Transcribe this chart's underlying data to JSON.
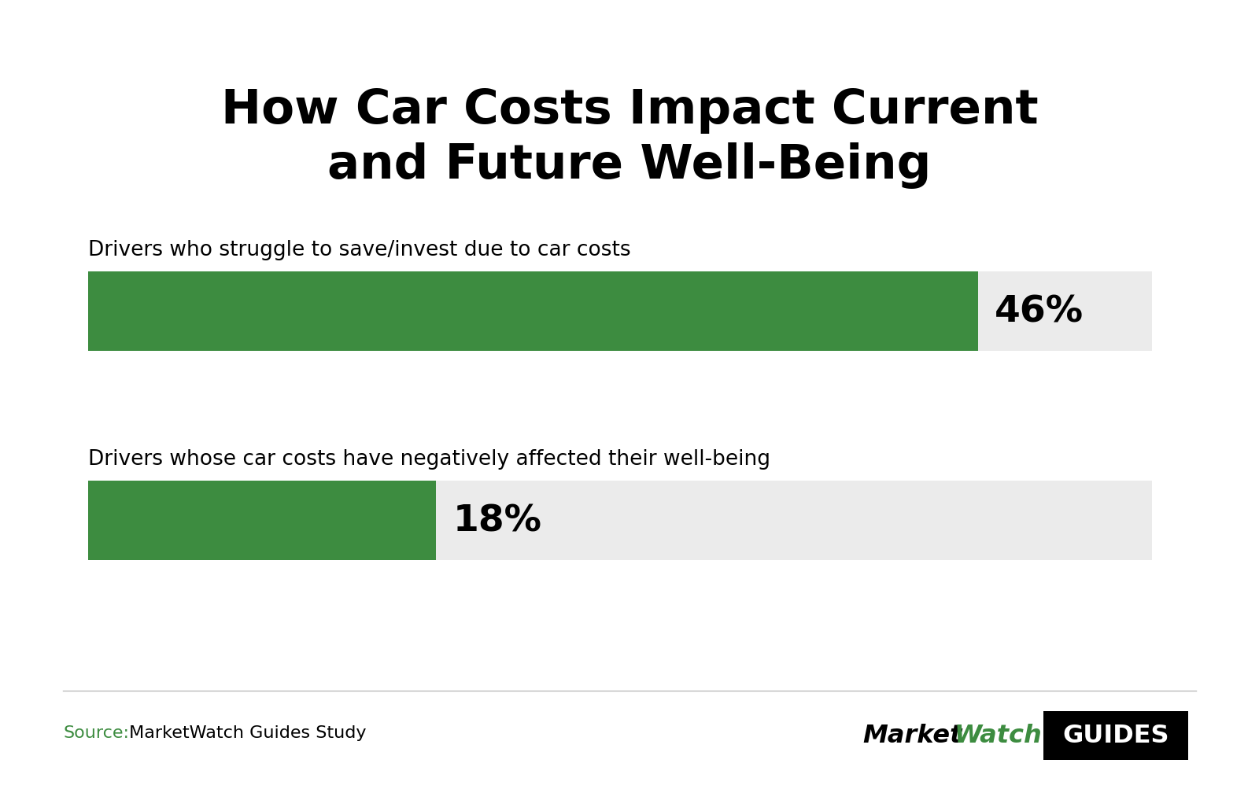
{
  "title": "How Car Costs Impact Current\nand Future Well-Being",
  "title_fontsize": 44,
  "title_fontweight": "bold",
  "background_color": "#ffffff",
  "bar_color": "#3d8c40",
  "bar_bg_color": "#ebebeb",
  "categories": [
    "Drivers who struggle to save/invest due to car costs",
    "Drivers whose car costs have negatively affected their well-being"
  ],
  "values": [
    46,
    18
  ],
  "scale_max": 55,
  "label_fontsize": 19,
  "pct_fontsize": 34,
  "pct_fontweight": "bold",
  "source_text": "Source:",
  "source_detail": " MarketWatch Guides Study",
  "source_color": "#3d8c40",
  "source_detail_color": "#000000",
  "source_fontsize": 16,
  "logo_watch_color": "#3d8c40",
  "logo_market_color": "#000000",
  "logo_guides_bg": "#000000",
  "logo_guides_color": "#ffffff",
  "top_stripe_color": "#3d8c40"
}
